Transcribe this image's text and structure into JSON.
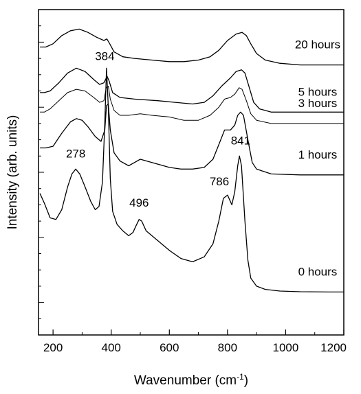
{
  "chart_data": {
    "type": "line",
    "xlabel": "Wavenumber (cm",
    "xlabel_sup": "-1",
    "xlabel_end": ")",
    "ylabel": "Intensity (arb. units)",
    "xlim": [
      150,
      1200
    ],
    "ylim": [
      0,
      10
    ],
    "x_ticks": [
      "200",
      "400",
      "600",
      "800",
      "1000",
      "1200"
    ],
    "x_tick_values": [
      200,
      400,
      600,
      800,
      1000,
      1200
    ],
    "y_ticks_labeled": false,
    "grid": false,
    "series": [
      {
        "name": "0 hours",
        "points": [
          [
            155,
            4.35
          ],
          [
            170,
            4.05
          ],
          [
            190,
            3.6
          ],
          [
            210,
            3.55
          ],
          [
            230,
            3.85
          ],
          [
            250,
            4.55
          ],
          [
            265,
            4.95
          ],
          [
            278,
            5.1
          ],
          [
            292,
            4.95
          ],
          [
            310,
            4.55
          ],
          [
            330,
            4.1
          ],
          [
            345,
            3.85
          ],
          [
            358,
            3.95
          ],
          [
            370,
            4.7
          ],
          [
            378,
            6.5
          ],
          [
            384,
            8.2
          ],
          [
            390,
            7.0
          ],
          [
            397,
            4.8
          ],
          [
            405,
            3.8
          ],
          [
            420,
            3.4
          ],
          [
            440,
            3.2
          ],
          [
            460,
            3.05
          ],
          [
            475,
            3.15
          ],
          [
            485,
            3.35
          ],
          [
            496,
            3.55
          ],
          [
            505,
            3.5
          ],
          [
            520,
            3.2
          ],
          [
            540,
            3.05
          ],
          [
            560,
            2.9
          ],
          [
            600,
            2.6
          ],
          [
            640,
            2.35
          ],
          [
            680,
            2.25
          ],
          [
            720,
            2.4
          ],
          [
            750,
            2.8
          ],
          [
            770,
            3.5
          ],
          [
            786,
            4.2
          ],
          [
            800,
            4.3
          ],
          [
            815,
            4.0
          ],
          [
            825,
            4.4
          ],
          [
            835,
            5.2
          ],
          [
            841,
            5.5
          ],
          [
            848,
            5.2
          ],
          [
            860,
            3.5
          ],
          [
            870,
            2.3
          ],
          [
            880,
            1.75
          ],
          [
            900,
            1.5
          ],
          [
            930,
            1.4
          ],
          [
            980,
            1.35
          ],
          [
            1050,
            1.33
          ],
          [
            1150,
            1.32
          ],
          [
            1200,
            1.32
          ]
        ]
      },
      {
        "name": "1 hours",
        "points": [
          [
            155,
            5.75
          ],
          [
            175,
            5.75
          ],
          [
            200,
            5.8
          ],
          [
            230,
            6.2
          ],
          [
            260,
            6.55
          ],
          [
            280,
            6.65
          ],
          [
            300,
            6.6
          ],
          [
            320,
            6.4
          ],
          [
            345,
            6.1
          ],
          [
            365,
            5.95
          ],
          [
            378,
            6.3
          ],
          [
            384,
            7.05
          ],
          [
            390,
            7.1
          ],
          [
            397,
            6.3
          ],
          [
            410,
            5.6
          ],
          [
            430,
            5.35
          ],
          [
            460,
            5.2
          ],
          [
            480,
            5.3
          ],
          [
            500,
            5.4
          ],
          [
            520,
            5.35
          ],
          [
            560,
            5.25
          ],
          [
            600,
            5.15
          ],
          [
            640,
            5.1
          ],
          [
            680,
            5.1
          ],
          [
            720,
            5.15
          ],
          [
            750,
            5.4
          ],
          [
            770,
            5.85
          ],
          [
            790,
            6.3
          ],
          [
            810,
            6.3
          ],
          [
            825,
            6.45
          ],
          [
            835,
            6.75
          ],
          [
            845,
            6.85
          ],
          [
            855,
            6.75
          ],
          [
            870,
            6.0
          ],
          [
            885,
            5.3
          ],
          [
            900,
            5.1
          ],
          [
            950,
            4.95
          ],
          [
            1050,
            4.92
          ],
          [
            1200,
            4.92
          ]
        ]
      },
      {
        "name": "3 hours",
        "points": [
          [
            155,
            6.85
          ],
          [
            170,
            6.85
          ],
          [
            190,
            6.95
          ],
          [
            220,
            7.2
          ],
          [
            250,
            7.45
          ],
          [
            280,
            7.55
          ],
          [
            310,
            7.5
          ],
          [
            340,
            7.3
          ],
          [
            360,
            7.15
          ],
          [
            375,
            7.2
          ],
          [
            383,
            7.6
          ],
          [
            390,
            7.65
          ],
          [
            397,
            7.25
          ],
          [
            410,
            6.9
          ],
          [
            430,
            6.75
          ],
          [
            460,
            6.75
          ],
          [
            500,
            6.8
          ],
          [
            540,
            6.75
          ],
          [
            600,
            6.7
          ],
          [
            650,
            6.6
          ],
          [
            700,
            6.6
          ],
          [
            740,
            6.75
          ],
          [
            770,
            7.0
          ],
          [
            790,
            7.25
          ],
          [
            810,
            7.3
          ],
          [
            825,
            7.4
          ],
          [
            840,
            7.6
          ],
          [
            850,
            7.55
          ],
          [
            865,
            7.2
          ],
          [
            880,
            6.8
          ],
          [
            900,
            6.6
          ],
          [
            950,
            6.5
          ],
          [
            1050,
            6.5
          ],
          [
            1200,
            6.5
          ]
        ]
      },
      {
        "name": "5 hours",
        "points": [
          [
            155,
            7.45
          ],
          [
            170,
            7.45
          ],
          [
            190,
            7.5
          ],
          [
            220,
            7.75
          ],
          [
            250,
            8.05
          ],
          [
            280,
            8.2
          ],
          [
            310,
            8.1
          ],
          [
            340,
            7.85
          ],
          [
            360,
            7.7
          ],
          [
            375,
            7.75
          ],
          [
            386,
            7.95
          ],
          [
            393,
            7.8
          ],
          [
            405,
            7.45
          ],
          [
            430,
            7.3
          ],
          [
            480,
            7.25
          ],
          [
            560,
            7.2
          ],
          [
            620,
            7.15
          ],
          [
            680,
            7.1
          ],
          [
            720,
            7.15
          ],
          [
            750,
            7.35
          ],
          [
            780,
            7.65
          ],
          [
            810,
            7.9
          ],
          [
            830,
            8.1
          ],
          [
            848,
            8.15
          ],
          [
            860,
            8.05
          ],
          [
            875,
            7.6
          ],
          [
            890,
            7.15
          ],
          [
            910,
            6.95
          ],
          [
            950,
            6.85
          ],
          [
            1050,
            6.85
          ],
          [
            1200,
            6.85
          ]
        ]
      },
      {
        "name": "20 hours",
        "points": [
          [
            155,
            8.85
          ],
          [
            175,
            8.85
          ],
          [
            200,
            8.95
          ],
          [
            230,
            9.2
          ],
          [
            260,
            9.35
          ],
          [
            290,
            9.4
          ],
          [
            320,
            9.3
          ],
          [
            350,
            9.15
          ],
          [
            375,
            9.05
          ],
          [
            385,
            9.1
          ],
          [
            395,
            8.95
          ],
          [
            410,
            8.7
          ],
          [
            440,
            8.55
          ],
          [
            480,
            8.5
          ],
          [
            540,
            8.45
          ],
          [
            600,
            8.4
          ],
          [
            650,
            8.4
          ],
          [
            700,
            8.45
          ],
          [
            740,
            8.55
          ],
          [
            770,
            8.75
          ],
          [
            800,
            9.05
          ],
          [
            830,
            9.25
          ],
          [
            850,
            9.3
          ],
          [
            865,
            9.2
          ],
          [
            880,
            8.95
          ],
          [
            900,
            8.65
          ],
          [
            930,
            8.45
          ],
          [
            980,
            8.35
          ],
          [
            1050,
            8.3
          ],
          [
            1150,
            8.3
          ],
          [
            1200,
            8.3
          ]
        ]
      }
    ],
    "annotations": [
      {
        "text": "278",
        "x": 278,
        "y": 5.45
      },
      {
        "text": "384",
        "x": 378,
        "y": 8.45
      },
      {
        "text": "496",
        "x": 496,
        "y": 3.95
      },
      {
        "text": "786",
        "x": 772,
        "y": 4.6
      },
      {
        "text": "841",
        "x": 845,
        "y": 5.85
      }
    ]
  }
}
